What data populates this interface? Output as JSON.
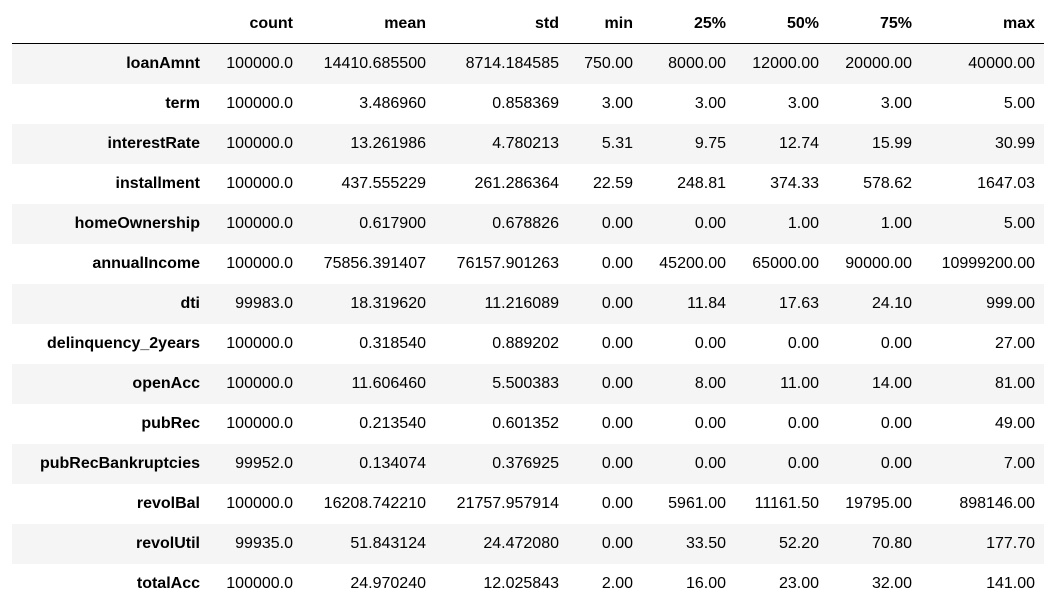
{
  "table": {
    "columns": [
      "count",
      "mean",
      "std",
      "min",
      "25%",
      "50%",
      "75%",
      "max"
    ],
    "rows": [
      {
        "label": "loanAmnt",
        "values": [
          "100000.0",
          "14410.685500",
          "8714.184585",
          "750.00",
          "8000.00",
          "12000.00",
          "20000.00",
          "40000.00"
        ]
      },
      {
        "label": "term",
        "values": [
          "100000.0",
          "3.486960",
          "0.858369",
          "3.00",
          "3.00",
          "3.00",
          "3.00",
          "5.00"
        ]
      },
      {
        "label": "interestRate",
        "values": [
          "100000.0",
          "13.261986",
          "4.780213",
          "5.31",
          "9.75",
          "12.74",
          "15.99",
          "30.99"
        ]
      },
      {
        "label": "installment",
        "values": [
          "100000.0",
          "437.555229",
          "261.286364",
          "22.59",
          "248.81",
          "374.33",
          "578.62",
          "1647.03"
        ]
      },
      {
        "label": "homeOwnership",
        "values": [
          "100000.0",
          "0.617900",
          "0.678826",
          "0.00",
          "0.00",
          "1.00",
          "1.00",
          "5.00"
        ]
      },
      {
        "label": "annualIncome",
        "values": [
          "100000.0",
          "75856.391407",
          "76157.901263",
          "0.00",
          "45200.00",
          "65000.00",
          "90000.00",
          "10999200.00"
        ]
      },
      {
        "label": "dti",
        "values": [
          "99983.0",
          "18.319620",
          "11.216089",
          "0.00",
          "11.84",
          "17.63",
          "24.10",
          "999.00"
        ]
      },
      {
        "label": "delinquency_2years",
        "values": [
          "100000.0",
          "0.318540",
          "0.889202",
          "0.00",
          "0.00",
          "0.00",
          "0.00",
          "27.00"
        ]
      },
      {
        "label": "openAcc",
        "values": [
          "100000.0",
          "11.606460",
          "5.500383",
          "0.00",
          "8.00",
          "11.00",
          "14.00",
          "81.00"
        ]
      },
      {
        "label": "pubRec",
        "values": [
          "100000.0",
          "0.213540",
          "0.601352",
          "0.00",
          "0.00",
          "0.00",
          "0.00",
          "49.00"
        ]
      },
      {
        "label": "pubRecBankruptcies",
        "values": [
          "99952.0",
          "0.134074",
          "0.376925",
          "0.00",
          "0.00",
          "0.00",
          "0.00",
          "7.00"
        ]
      },
      {
        "label": "revolBal",
        "values": [
          "100000.0",
          "16208.742210",
          "21757.957914",
          "0.00",
          "5961.00",
          "11161.50",
          "19795.00",
          "898146.00"
        ]
      },
      {
        "label": "revolUtil",
        "values": [
          "99935.0",
          "51.843124",
          "24.472080",
          "0.00",
          "33.50",
          "52.20",
          "70.80",
          "177.70"
        ]
      },
      {
        "label": "totalAcc",
        "values": [
          "100000.0",
          "24.970240",
          "12.025843",
          "2.00",
          "16.00",
          "23.00",
          "32.00",
          "141.00"
        ]
      }
    ]
  },
  "colors": {
    "striped_row": "#f5f5f5",
    "header_rule": "#000000"
  }
}
